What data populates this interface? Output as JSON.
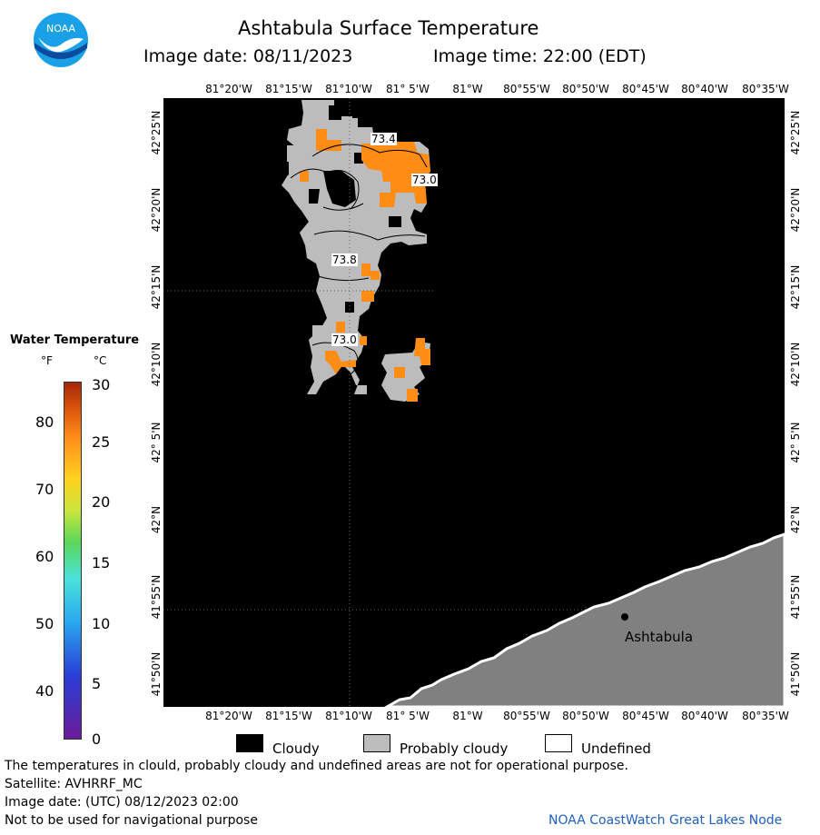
{
  "header": {
    "title": "Ashtabula Surface Temperature",
    "image_date": "Image date: 08/11/2023",
    "image_time": "Image time: 22:00 (EDT)"
  },
  "logo": {
    "text": "NOAA"
  },
  "map": {
    "lon_labels": [
      "81°20'W",
      "81°15'W",
      "81°10'W",
      "81° 5'W",
      "81°W",
      "80°55'W",
      "80°50'W",
      "80°45'W",
      "80°40'W",
      "80°35'W"
    ],
    "lat_labels": [
      "42°25'N",
      "42°20'N",
      "42°15'N",
      "42°10'N",
      "42° 5'N",
      "42°N",
      "41°55'N",
      "41°50'N"
    ],
    "temp_labels": [
      "73.4",
      "73.0",
      "73.8",
      "73.0"
    ],
    "place_label": "Ashtabula",
    "colors": {
      "cloudy": "#000000",
      "probably_cloudy": "#bcbcbc",
      "land": "#808080",
      "warm": "#ff8c14"
    }
  },
  "legend": {
    "title": "Water Temperature",
    "unit_f": "°F",
    "unit_c": "°C",
    "f_ticks": [
      "80",
      "70",
      "60",
      "50",
      "40"
    ],
    "c_ticks": [
      "30",
      "25",
      "20",
      "15",
      "10",
      "5",
      "0"
    ]
  },
  "key": {
    "cloudy": "Cloudy",
    "probably_cloudy": "Probably cloudy",
    "undefined": "Undefined"
  },
  "footer": {
    "line1": "The temperatures in clould, probably cloudy and undefined areas are not for operational purpose.",
    "line2": "Satellite: AVHRRF_MC",
    "line3": "Image date: (UTC) 08/12/2023  02:00",
    "line4": "Not to be used for navigational purpose",
    "credit": "NOAA CoastWatch Great Lakes Node"
  }
}
